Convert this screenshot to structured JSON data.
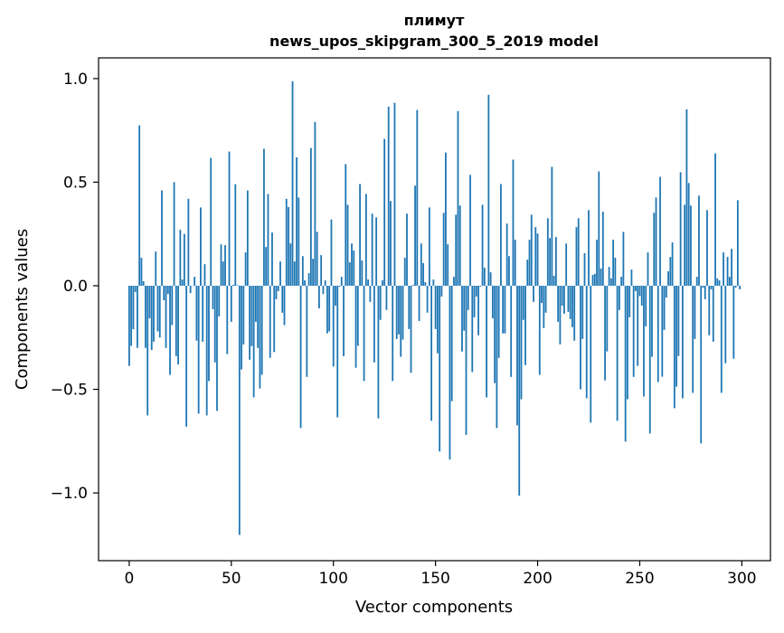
{
  "chart_data": {
    "type": "bar",
    "title_line1": "плимут",
    "title_line2": "news_upos_skipgram_300_5_2019 model",
    "xlabel": "Vector components",
    "ylabel": "Components values",
    "xlim": [
      -15,
      314
    ],
    "ylim": [
      -1.327,
      1.1
    ],
    "xticks": [
      0,
      50,
      100,
      150,
      200,
      250,
      300
    ],
    "xtick_labels": [
      "0",
      "50",
      "100",
      "150",
      "200",
      "250",
      "300"
    ],
    "yticks": [
      1.0,
      0.5,
      0.0,
      -0.5,
      -1.0
    ],
    "ytick_labels": [
      "1.0",
      "0.5",
      "0.0",
      "−0.5",
      "−1.0"
    ],
    "grid": false,
    "bar_color": "#1f77b4",
    "values": [
      -0.387,
      -0.29,
      -0.21,
      -0.03,
      -0.3,
      0.774,
      0.135,
      0.022,
      -0.3,
      -0.626,
      -0.157,
      -0.31,
      -0.27,
      0.165,
      -0.22,
      -0.25,
      0.46,
      -0.07,
      -0.3,
      -0.04,
      -0.43,
      -0.19,
      0.5,
      -0.34,
      -0.38,
      0.27,
      0.03,
      0.25,
      -0.68,
      0.42,
      -0.035,
      0.0,
      0.043,
      -0.265,
      -0.617,
      0.378,
      -0.27,
      0.104,
      -0.626,
      -0.46,
      0.617,
      -0.113,
      -0.37,
      -0.604,
      -0.148,
      0.2,
      0.117,
      0.196,
      -0.33,
      0.648,
      -0.174,
      0.005,
      0.49,
      0.003,
      -1.203,
      -0.404,
      -0.283,
      0.161,
      0.46,
      -0.357,
      -0.291,
      -0.539,
      -0.174,
      -0.3,
      -0.496,
      -0.43,
      0.661,
      0.187,
      0.443,
      -0.348,
      0.257,
      -0.32,
      -0.065,
      -0.026,
      0.117,
      -0.13,
      -0.19,
      0.42,
      0.38,
      0.204,
      0.987,
      0.117,
      0.62,
      0.426,
      -0.687,
      0.143,
      0.026,
      -0.44,
      0.061,
      0.665,
      0.13,
      0.791,
      0.26,
      -0.109,
      0.148,
      -0.04,
      0.026,
      -0.23,
      -0.22,
      0.32,
      -0.39,
      -0.096,
      -0.635,
      -0.005,
      0.043,
      -0.34,
      0.587,
      0.391,
      0.113,
      0.204,
      0.17,
      -0.396,
      -0.29,
      0.491,
      0.122,
      -0.46,
      0.443,
      0.03,
      -0.078,
      0.348,
      -0.37,
      0.33,
      -0.64,
      -0.165,
      0.026,
      0.709,
      -0.117,
      0.865,
      0.409,
      -0.46,
      0.883,
      -0.257,
      -0.235,
      -0.343,
      -0.26,
      0.135,
      0.348,
      -0.209,
      -0.42,
      0.004,
      0.483,
      0.848,
      -0.17,
      0.204,
      0.109,
      0.017,
      -0.13,
      0.378,
      -0.652,
      0.03,
      -0.209,
      -0.326,
      -0.8,
      -0.052,
      0.352,
      0.643,
      0.2,
      -0.839,
      -0.557,
      0.043,
      0.343,
      0.843,
      0.387,
      -0.317,
      -0.217,
      -0.72,
      -0.117,
      0.535,
      -0.417,
      -0.152,
      -0.052,
      -0.239,
      -0.004,
      0.391,
      0.087,
      -0.539,
      0.922,
      0.065,
      -0.157,
      -0.47,
      -0.687,
      -0.348,
      0.491,
      -0.23,
      -0.23,
      0.3,
      0.143,
      -0.44,
      0.609,
      0.222,
      -0.674,
      -1.013,
      -0.548,
      -0.165,
      -0.383,
      0.126,
      0.222,
      0.343,
      -0.078,
      0.283,
      0.252,
      -0.43,
      -0.083,
      -0.204,
      -0.13,
      0.326,
      0.23,
      0.574,
      0.048,
      0.235,
      -0.174,
      -0.283,
      -0.096,
      -0.135,
      0.204,
      -0.126,
      -0.161,
      -0.2,
      -0.265,
      0.283,
      0.326,
      -0.5,
      -0.257,
      0.157,
      -0.543,
      0.365,
      -0.661,
      0.052,
      0.057,
      0.222,
      0.552,
      0.083,
      0.357,
      -0.457,
      -0.317,
      0.091,
      0.035,
      0.222,
      0.135,
      -0.652,
      -0.117,
      0.043,
      0.26,
      -0.752,
      -0.548,
      -0.152,
      0.078,
      -0.44,
      -0.026,
      -0.387,
      -0.05,
      -0.096,
      -0.535,
      -0.196,
      0.161,
      -0.713,
      -0.343,
      0.352,
      0.426,
      -0.465,
      0.526,
      -0.439,
      -0.213,
      -0.057,
      0.07,
      0.139,
      0.209,
      -0.591,
      -0.487,
      -0.339,
      0.548,
      -0.543,
      0.391,
      0.852,
      0.496,
      0.387,
      -0.517,
      -0.257,
      0.043,
      0.435,
      -0.761,
      -0.009,
      -0.065,
      0.365,
      -0.239,
      -0.017,
      -0.27,
      0.639,
      0.035,
      0.026,
      -0.517,
      0.161,
      -0.374,
      0.139,
      0.043,
      0.178,
      -0.352,
      -0.009,
      0.413,
      -0.017
    ]
  }
}
